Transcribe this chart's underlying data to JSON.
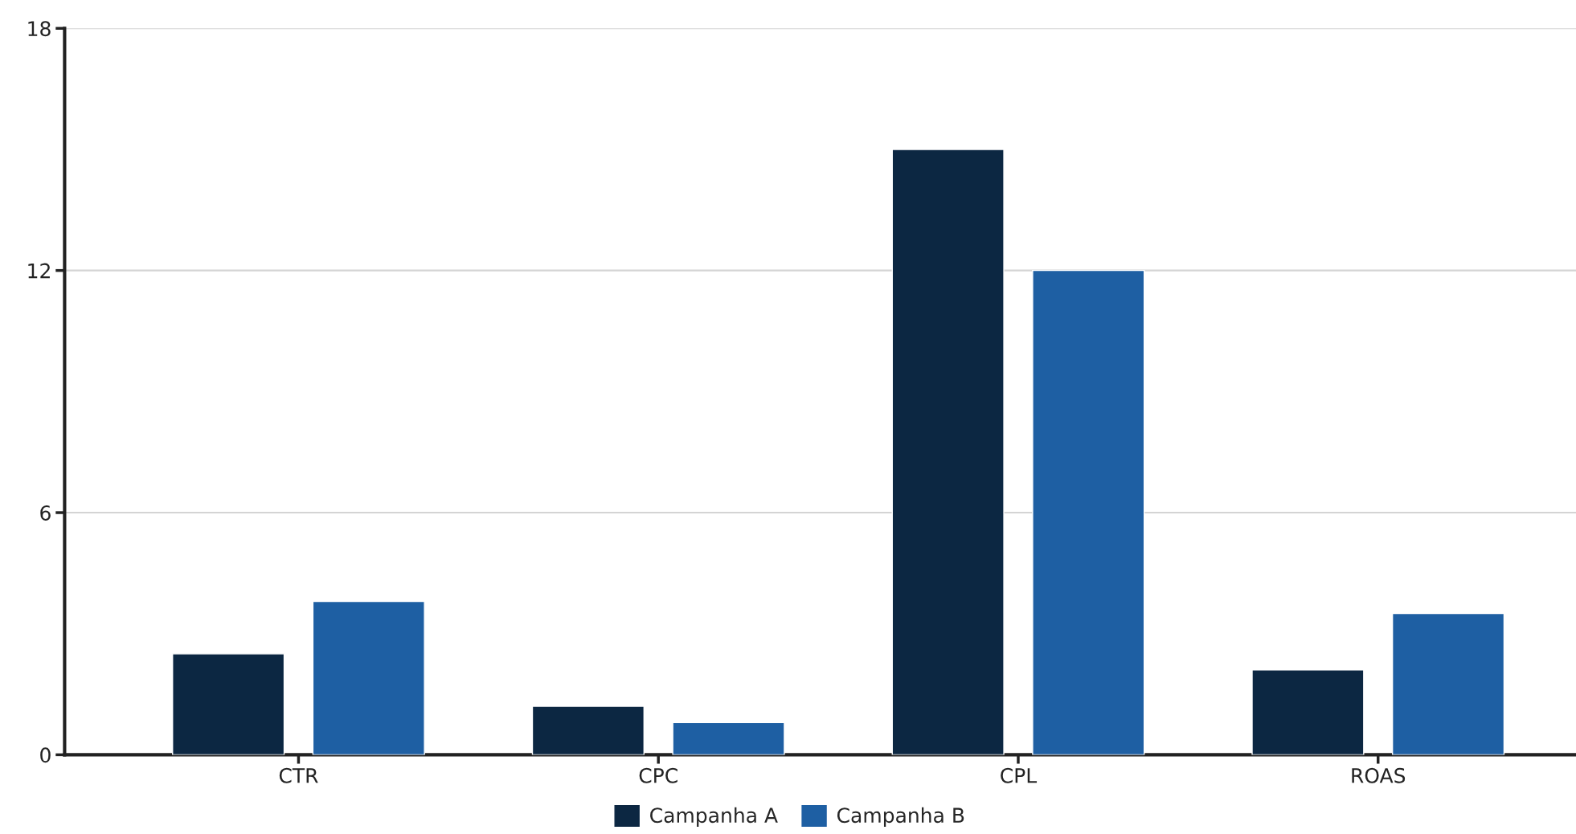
{
  "chart_data": {
    "type": "bar",
    "categories": [
      "CTR",
      "CPC",
      "CPL",
      "ROAS"
    ],
    "series": [
      {
        "name": "Campanha A",
        "color": "#0c2742",
        "values": [
          2.5,
          1.2,
          15,
          2.1
        ]
      },
      {
        "name": "Campanha B",
        "color": "#1e5fa3",
        "values": [
          3.8,
          0.8,
          12,
          3.5
        ]
      }
    ],
    "ylim": [
      0,
      18
    ],
    "yticks": [
      0,
      6,
      12,
      18
    ],
    "grid": "y",
    "legend": "bottom"
  }
}
